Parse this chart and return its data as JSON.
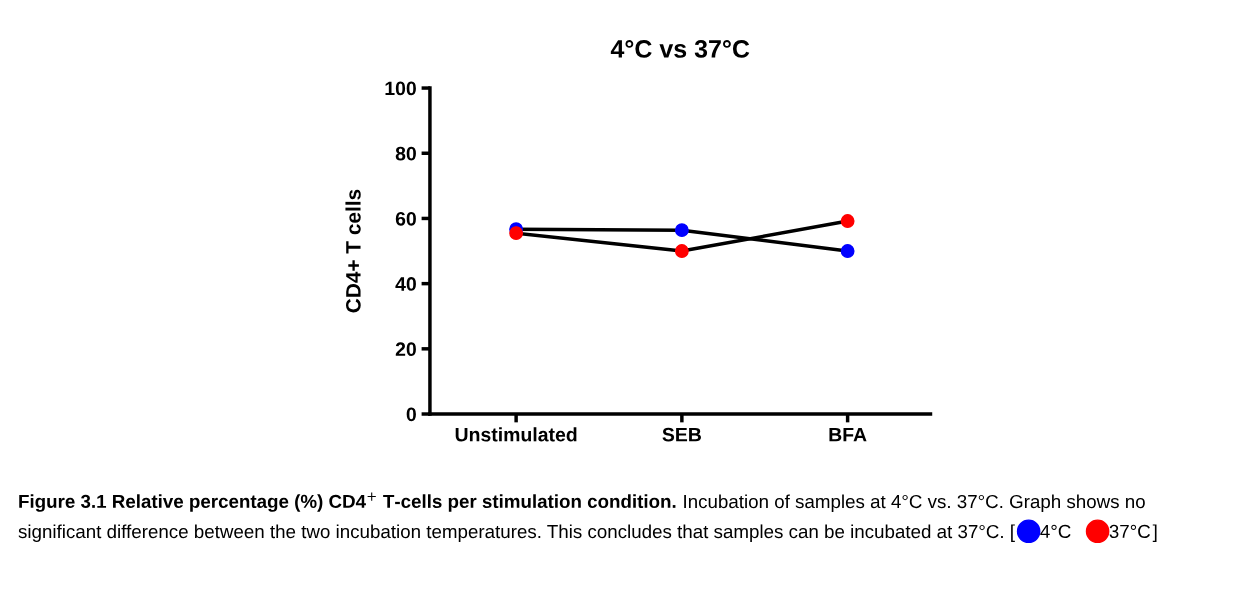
{
  "chart_data": {
    "type": "line",
    "title": "4°C vs 37°C",
    "ylabel": "CD4+ T cells",
    "categories": [
      "Unstimulated",
      "SEB",
      "BFA"
    ],
    "series": [
      {
        "name": "4°C",
        "color": "#0000ff",
        "values": [
          56.7,
          56.4,
          50.0
        ]
      },
      {
        "name": "37°C",
        "color": "#ff0000",
        "values": [
          55.5,
          50.0,
          59.2
        ]
      }
    ],
    "ylim": [
      0,
      100
    ],
    "yticks": [
      0,
      20,
      40,
      60,
      80,
      100
    ],
    "grid": false,
    "marker": "circle",
    "line_style": "solid",
    "legend": "bottom",
    "annotations": [
      "Figure 3.1 Relative percentage (%) CD4$^{+}$ T-cells per stimulation condition.",
      "Incubation of samples at 4°C vs. 37°C. Graph shows no significant difference between the two incubation temperatures. This concludes that samples can be incubated at 37°C. [",
      "]"
    ]
  }
}
